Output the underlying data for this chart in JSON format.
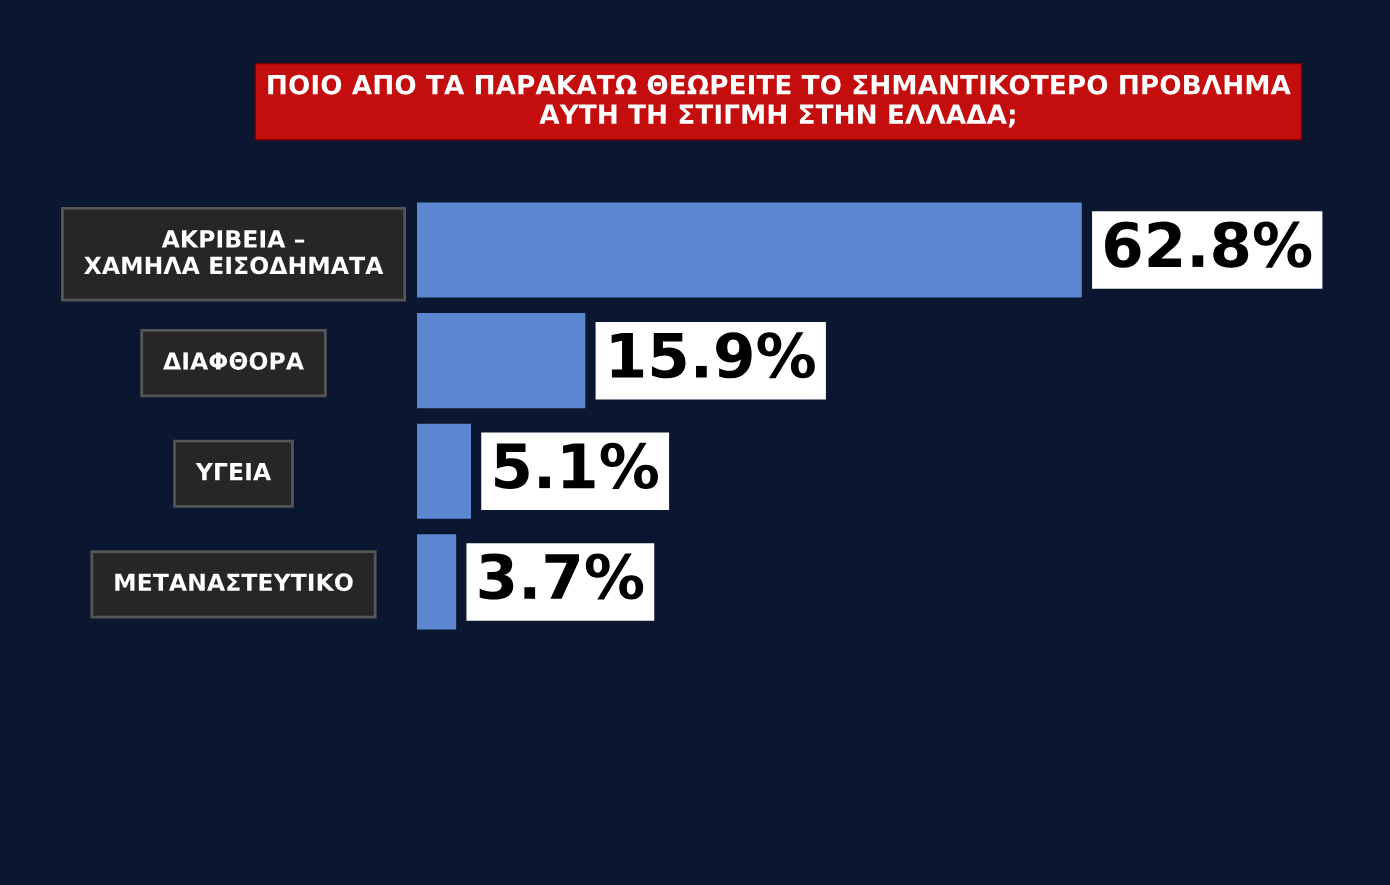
{
  "chart_data": {
    "type": "bar",
    "orientation": "horizontal",
    "title": "ΠΟΙΟ ΑΠΟ ΤΑ ΠΑΡΑΚΑΤΩ ΘΕΩΡΕΙΤΕ ΤΟ ΣΗΜΑΝΤΙΚΟΤΕΡΟ ΠΡΟΒΛΗΜΑ\nΑΥΤΗ ΤΗ ΣΤΙΓΜΗ ΣΤΗΝ ΕΛΛΑΔΑ;",
    "categories": [
      "ΑΚΡΙΒΕΙΑ –\nΧΑΜΗΛΑ ΕΙΣΟΔΗΜΑΤΑ",
      "ΔΙΑΦΘΟΡΑ",
      "ΥΓΕΙΑ",
      "ΜΕΤΑΝΑΣΤΕΥΤΙΚΟ"
    ],
    "values": [
      62.8,
      15.9,
      5.1,
      3.7
    ],
    "value_labels": [
      "62.8%",
      "15.9%",
      "5.1%",
      "3.7%"
    ],
    "color": "#5b87d0",
    "tick_labels": "y",
    "grid": false
  }
}
